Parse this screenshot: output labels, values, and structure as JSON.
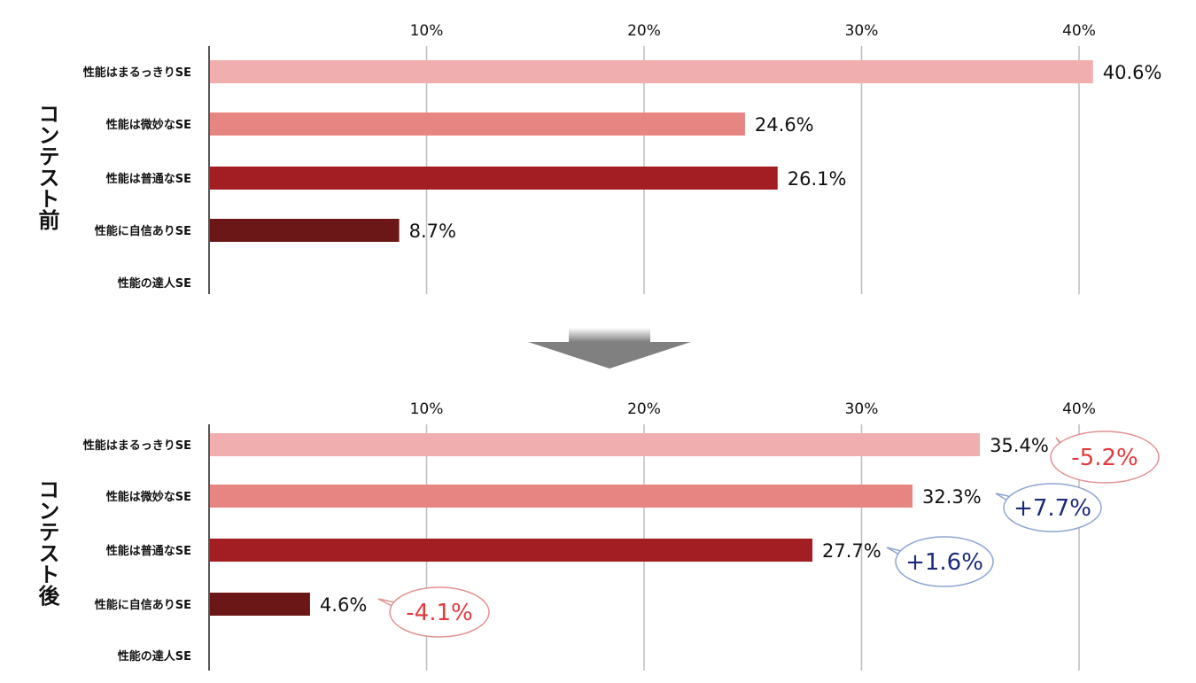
{
  "chart_data": [
    {
      "type": "bar",
      "orientation": "horizontal",
      "title": "コンテスト前",
      "categories": [
        "性能はまるっきりSE",
        "性能は微妙なSE",
        "性能は普通なSE",
        "性能に自信ありSE",
        "性能の達人SE"
      ],
      "values": [
        40.6,
        24.6,
        26.1,
        8.7,
        null
      ],
      "value_labels": [
        "40.6%",
        "24.6%",
        "26.1%",
        "8.7%",
        ""
      ],
      "colors": [
        "#f0aeae",
        "#e78582",
        "#a31e22",
        "#6b1717",
        "#6b1717"
      ],
      "xticks": [
        10,
        20,
        30,
        40
      ],
      "xtick_labels": [
        "10%",
        "20%",
        "30%",
        "40%"
      ],
      "xlim": [
        0,
        42
      ],
      "grid": true,
      "axis_position": "top"
    },
    {
      "type": "bar",
      "orientation": "horizontal",
      "title": "コンテスト後",
      "categories": [
        "性能はまるっきりSE",
        "性能は微妙なSE",
        "性能は普通なSE",
        "性能に自信ありSE",
        "性能の達人SE"
      ],
      "values": [
        35.4,
        32.3,
        27.7,
        4.6,
        null
      ],
      "value_labels": [
        "35.4%",
        "32.3%",
        "27.7%",
        "4.6%",
        ""
      ],
      "colors": [
        "#f0aeae",
        "#e78582",
        "#a31e22",
        "#6b1717",
        "#6b1717"
      ],
      "xticks": [
        10,
        20,
        30,
        40
      ],
      "xtick_labels": [
        "10%",
        "20%",
        "30%",
        "40%"
      ],
      "xlim": [
        0,
        42
      ],
      "grid": true,
      "axis_position": "top",
      "annotations": [
        {
          "category": "性能はまるっきりSE",
          "text": "-5.2%",
          "kind": "decrease"
        },
        {
          "category": "性能は微妙なSE",
          "text": "+7.7%",
          "kind": "increase"
        },
        {
          "category": "性能は普通なSE",
          "text": "+1.6%",
          "kind": "increase"
        },
        {
          "category": "性能に自信ありSE",
          "text": "-4.1%",
          "kind": "decrease"
        }
      ]
    }
  ],
  "arrow_color": "#808080",
  "annotation_colors": {
    "decrease": "#e03a3e",
    "increase": "#1b2a7a"
  }
}
